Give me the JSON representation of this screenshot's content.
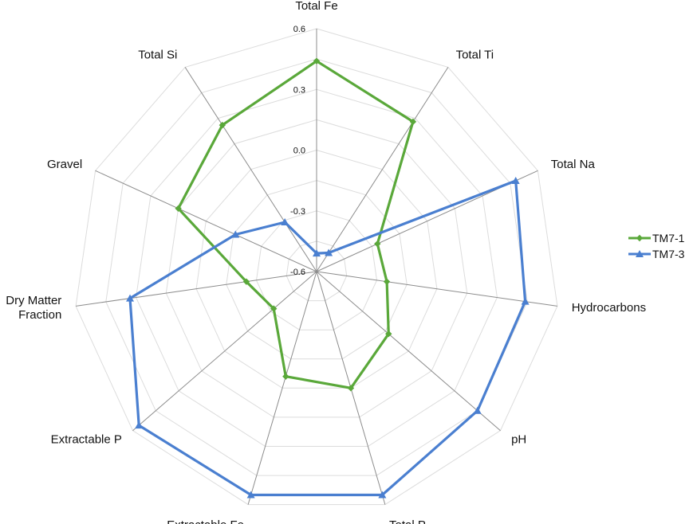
{
  "chart_data": {
    "type": "radar",
    "axes": [
      "Total Fe",
      "Total Ti",
      "Total Na",
      "Hydrocarbons",
      "pH",
      "Total P",
      "Extractable Fe",
      "Extractable P",
      "Dry Matter Fraction",
      "Gravel",
      "Total Si"
    ],
    "axis_label_lines": [
      [
        "Total Fe"
      ],
      [
        "Total Ti"
      ],
      [
        "Total Na"
      ],
      [
        "Hydrocarbons"
      ],
      [
        "pH"
      ],
      [
        "Total P"
      ],
      [
        "Extractable Fe"
      ],
      [
        "Extractable P"
      ],
      [
        "Dry Matter",
        "Fraction"
      ],
      [
        "Gravel"
      ],
      [
        "Total Si"
      ]
    ],
    "range": [
      -0.6,
      0.6
    ],
    "ticks": [
      -0.6,
      -0.3,
      0.0,
      0.3,
      0.6
    ],
    "tick_labels": [
      "-0.6",
      "-0.3",
      "0.0",
      "0.3",
      "0.6"
    ],
    "grid": true,
    "legend_position": "right",
    "series": [
      {
        "name": "TM7-1",
        "color": "#5aa83a",
        "marker": "diamond",
        "values": [
          0.44,
          0.28,
          -0.27,
          -0.25,
          -0.13,
          0.0,
          -0.06,
          -0.32,
          -0.25,
          0.15,
          0.26
        ]
      },
      {
        "name": "TM7-3",
        "color": "#4a7fd0",
        "marker": "triangle",
        "values": [
          -0.51,
          -0.49,
          0.48,
          0.44,
          0.45,
          0.55,
          0.55,
          0.56,
          0.33,
          -0.16,
          -0.31
        ]
      }
    ]
  }
}
